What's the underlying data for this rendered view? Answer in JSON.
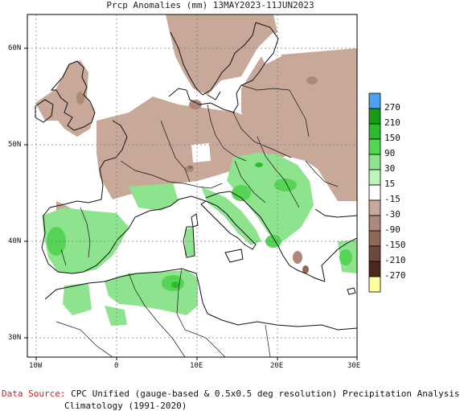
{
  "title": "Prcp Anomalies (mm) 13MAY2023-11JUN2023",
  "map": {
    "y_ticks": [
      "60N",
      "50N",
      "40N",
      "30N"
    ],
    "x_ticks": [
      "10W",
      "0",
      "10E",
      "20E",
      "30E"
    ],
    "frame_bg": "#ffffff",
    "grid_color": "#777777"
  },
  "legend": {
    "labels": [
      "270",
      "210",
      "150",
      "90",
      "30",
      "15",
      "-15",
      "-30",
      "-90",
      "-150",
      "-210",
      "-270"
    ],
    "colors": [
      "#4da0f0",
      "#199a19",
      "#2dbb2d",
      "#55d455",
      "#8ee48e",
      "#bdf4bd",
      "#ffffff",
      "#c8a898",
      "#ae8878",
      "#8e6858",
      "#6e4838",
      "#4e2818",
      "#ffff9e"
    ]
  },
  "footer": {
    "source_key": "Data Source:",
    "source_text": "CPC Unified (gauge-based & 0.5x0.5 deg resolution) Precipitation Analysis",
    "climatology": "Climatology (1991-2020)"
  }
}
